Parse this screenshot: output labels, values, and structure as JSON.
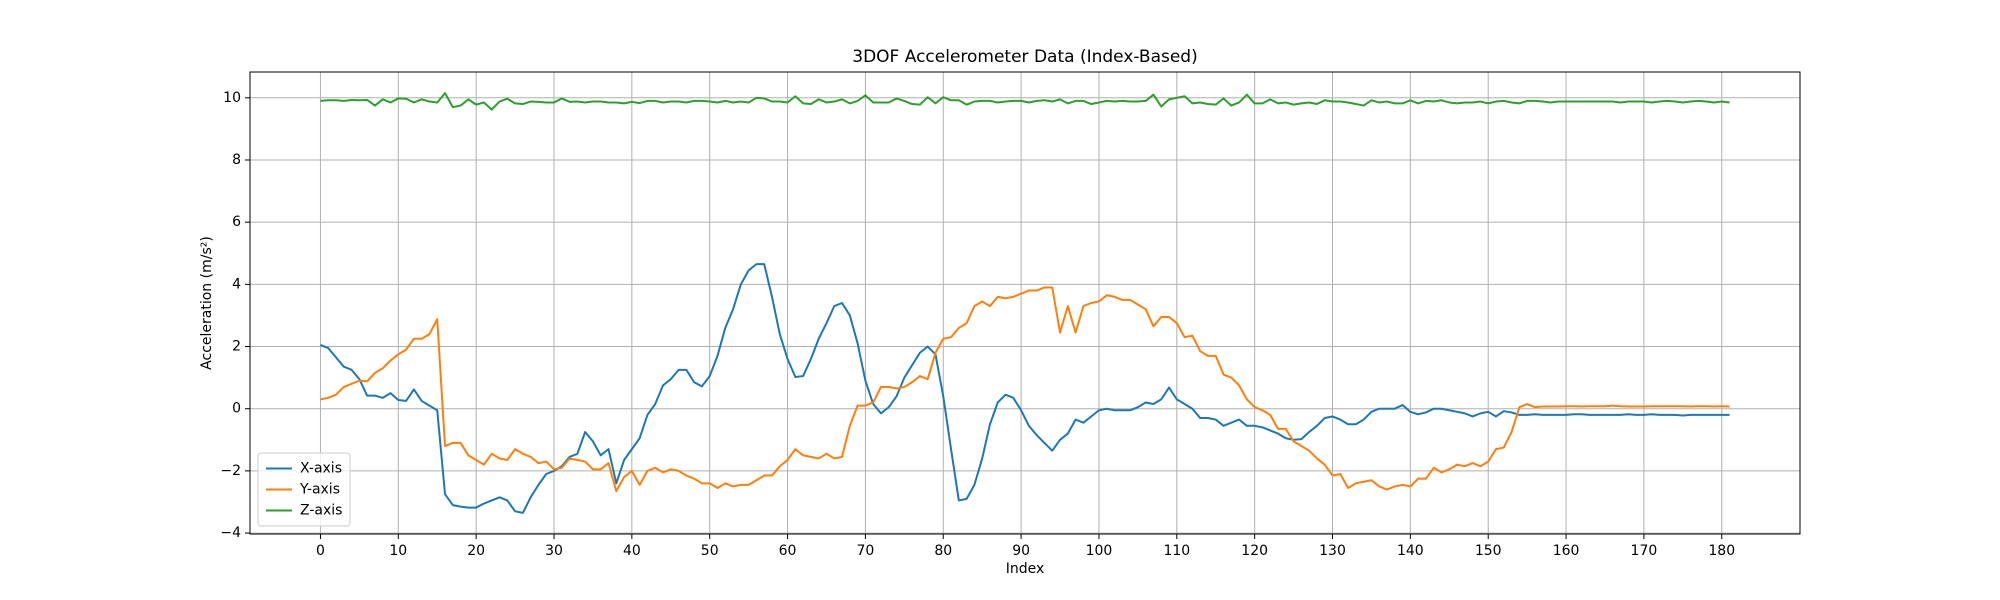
{
  "chart_data": {
    "type": "line",
    "title": "3DOF Accelerometer Data (Index-Based)",
    "x_label": "Index",
    "y_label": "Acceleration (m/s²)",
    "x": [
      0,
      1,
      2,
      3,
      4,
      5,
      6,
      7,
      8,
      9,
      10,
      11,
      12,
      13,
      14,
      15,
      16,
      17,
      18,
      19,
      20,
      21,
      22,
      23,
      24,
      25,
      26,
      27,
      28,
      29,
      30,
      31,
      32,
      33,
      34,
      35,
      36,
      37,
      38,
      39,
      40,
      41,
      42,
      43,
      44,
      45,
      46,
      47,
      48,
      49,
      50,
      51,
      52,
      53,
      54,
      55,
      56,
      57,
      58,
      59,
      60,
      61,
      62,
      63,
      64,
      65,
      66,
      67,
      68,
      69,
      70,
      71,
      72,
      73,
      74,
      75,
      76,
      77,
      78,
      79,
      80,
      81,
      82,
      83,
      84,
      85,
      86,
      87,
      88,
      89,
      90,
      91,
      92,
      93,
      94,
      95,
      96,
      97,
      98,
      99,
      100,
      101,
      102,
      103,
      104,
      105,
      106,
      107,
      108,
      109,
      110,
      111,
      112,
      113,
      114,
      115,
      116,
      117,
      118,
      119,
      120,
      121,
      122,
      123,
      124,
      125,
      126,
      127,
      128,
      129,
      130,
      131,
      132,
      133,
      134,
      135,
      136,
      137,
      138,
      139,
      140,
      141,
      142,
      143,
      144,
      145,
      146,
      147,
      148,
      149,
      150,
      151,
      152,
      153,
      154,
      155,
      156,
      157,
      158,
      159,
      160,
      161,
      162,
      163,
      164,
      165,
      166,
      167,
      168,
      169,
      170,
      171,
      172,
      173,
      174,
      175,
      176,
      177,
      178,
      179,
      180,
      181
    ],
    "series": [
      {
        "name": "X-axis",
        "color": "#1f77b4",
        "values": [
          2.05,
          1.95,
          1.65,
          1.35,
          1.25,
          0.95,
          0.42,
          0.42,
          0.35,
          0.5,
          0.28,
          0.25,
          0.62,
          0.25,
          0.1,
          -0.05,
          -2.75,
          -3.1,
          -3.15,
          -3.18,
          -3.18,
          -3.05,
          -2.95,
          -2.85,
          -2.95,
          -3.3,
          -3.35,
          -2.85,
          -2.45,
          -2.1,
          -2.0,
          -1.85,
          -1.55,
          -1.45,
          -0.75,
          -1.05,
          -1.5,
          -1.3,
          -2.4,
          -1.65,
          -1.3,
          -0.95,
          -0.2,
          0.15,
          0.75,
          0.95,
          1.25,
          1.25,
          0.85,
          0.72,
          1.05,
          1.7,
          2.6,
          3.2,
          4.0,
          4.45,
          4.65,
          4.65,
          3.6,
          2.4,
          1.6,
          1.02,
          1.05,
          1.6,
          2.25,
          2.75,
          3.3,
          3.4,
          3.0,
          2.1,
          0.9,
          0.15,
          -0.15,
          0.05,
          0.4,
          1.0,
          1.4,
          1.8,
          2.0,
          1.75,
          0.4,
          -1.3,
          -2.95,
          -2.9,
          -2.45,
          -1.6,
          -0.5,
          0.2,
          0.45,
          0.35,
          -0.05,
          -0.55,
          -0.85,
          -1.1,
          -1.35,
          -1.0,
          -0.8,
          -0.35,
          -0.45,
          -0.25,
          -0.05,
          0.0,
          -0.05,
          -0.05,
          -0.05,
          0.05,
          0.2,
          0.15,
          0.3,
          0.68,
          0.3,
          0.15,
          0.0,
          -0.3,
          -0.3,
          -0.35,
          -0.55,
          -0.45,
          -0.35,
          -0.55,
          -0.55,
          -0.6,
          -0.7,
          -0.8,
          -0.95,
          -1.0,
          -0.98,
          -0.75,
          -0.55,
          -0.3,
          -0.25,
          -0.35,
          -0.5,
          -0.5,
          -0.35,
          -0.1,
          0.0,
          0.0,
          0.0,
          0.12,
          -0.1,
          -0.18,
          -0.12,
          0.0,
          0.0,
          -0.05,
          -0.1,
          -0.15,
          -0.25,
          -0.15,
          -0.1,
          -0.25,
          -0.08,
          -0.12,
          -0.2,
          -0.2,
          -0.18,
          -0.2,
          -0.2,
          -0.2,
          -0.2,
          -0.18,
          -0.18,
          -0.2,
          -0.2,
          -0.2,
          -0.2,
          -0.2,
          -0.18,
          -0.2,
          -0.2,
          -0.18,
          -0.2,
          -0.2,
          -0.2,
          -0.22,
          -0.2,
          -0.2,
          -0.2,
          -0.2,
          -0.2,
          -0.2
        ]
      },
      {
        "name": "Y-axis",
        "color": "#ff7f0e",
        "values": [
          0.3,
          0.35,
          0.45,
          0.7,
          0.8,
          0.9,
          0.88,
          1.15,
          1.3,
          1.55,
          1.75,
          1.9,
          2.25,
          2.25,
          2.4,
          2.88,
          -1.2,
          -1.1,
          -1.1,
          -1.5,
          -1.65,
          -1.8,
          -1.45,
          -1.6,
          -1.65,
          -1.3,
          -1.45,
          -1.55,
          -1.75,
          -1.7,
          -1.95,
          -1.9,
          -1.6,
          -1.65,
          -1.7,
          -1.95,
          -1.95,
          -1.75,
          -2.65,
          -2.2,
          -2.0,
          -2.45,
          -2.0,
          -1.9,
          -2.05,
          -1.95,
          -2.0,
          -2.15,
          -2.25,
          -2.4,
          -2.4,
          -2.55,
          -2.4,
          -2.5,
          -2.45,
          -2.45,
          -2.3,
          -2.15,
          -2.15,
          -1.85,
          -1.65,
          -1.3,
          -1.5,
          -1.55,
          -1.6,
          -1.45,
          -1.6,
          -1.55,
          -0.55,
          0.1,
          0.1,
          0.2,
          0.7,
          0.7,
          0.65,
          0.7,
          0.85,
          1.05,
          0.95,
          1.8,
          2.25,
          2.3,
          2.6,
          2.75,
          3.3,
          3.45,
          3.3,
          3.6,
          3.55,
          3.6,
          3.7,
          3.8,
          3.8,
          3.9,
          3.9,
          2.45,
          3.3,
          2.45,
          3.3,
          3.4,
          3.45,
          3.65,
          3.6,
          3.5,
          3.5,
          3.35,
          3.2,
          2.65,
          2.95,
          2.95,
          2.75,
          2.3,
          2.35,
          1.85,
          1.7,
          1.7,
          1.1,
          1.0,
          0.75,
          0.3,
          0.05,
          -0.05,
          -0.2,
          -0.65,
          -0.65,
          -1.05,
          -1.2,
          -1.35,
          -1.6,
          -1.8,
          -2.15,
          -2.1,
          -2.55,
          -2.4,
          -2.35,
          -2.3,
          -2.5,
          -2.6,
          -2.5,
          -2.45,
          -2.5,
          -2.25,
          -2.25,
          -1.9,
          -2.05,
          -1.95,
          -1.8,
          -1.85,
          -1.75,
          -1.85,
          -1.7,
          -1.3,
          -1.25,
          -0.75,
          0.05,
          0.15,
          0.05,
          0.07,
          0.07,
          0.07,
          0.08,
          0.08,
          0.07,
          0.08,
          0.08,
          0.08,
          0.1,
          0.08,
          0.07,
          0.07,
          0.07,
          0.08,
          0.08,
          0.08,
          0.08,
          0.08,
          0.07,
          0.08,
          0.08,
          0.07,
          0.08,
          0.07
        ]
      },
      {
        "name": "Z-axis",
        "color": "#2ca02c",
        "values": [
          9.9,
          9.92,
          9.92,
          9.9,
          9.93,
          9.92,
          9.93,
          9.75,
          9.95,
          9.85,
          9.98,
          9.97,
          9.85,
          9.95,
          9.88,
          9.85,
          10.15,
          9.7,
          9.75,
          9.95,
          9.78,
          9.85,
          9.62,
          9.88,
          9.97,
          9.82,
          9.8,
          9.88,
          9.87,
          9.85,
          9.85,
          9.98,
          9.87,
          9.88,
          9.85,
          9.88,
          9.88,
          9.85,
          9.85,
          9.82,
          9.87,
          9.83,
          9.9,
          9.9,
          9.85,
          9.88,
          9.88,
          9.85,
          9.9,
          9.9,
          9.88,
          9.85,
          9.9,
          9.85,
          9.88,
          9.85,
          10.0,
          9.98,
          9.88,
          9.88,
          9.85,
          10.05,
          9.82,
          9.8,
          9.95,
          9.85,
          9.88,
          9.95,
          9.82,
          9.9,
          10.08,
          9.85,
          9.85,
          9.85,
          9.98,
          9.9,
          9.8,
          9.78,
          10.02,
          9.82,
          10.02,
          9.92,
          9.92,
          9.78,
          9.88,
          9.9,
          9.9,
          9.85,
          9.88,
          9.9,
          9.9,
          9.85,
          9.9,
          9.92,
          9.88,
          9.95,
          9.82,
          9.9,
          9.9,
          9.8,
          9.85,
          9.9,
          9.88,
          9.9,
          9.88,
          9.88,
          9.9,
          10.1,
          9.72,
          9.95,
          10.0,
          10.05,
          9.82,
          9.85,
          9.8,
          9.78,
          9.98,
          9.75,
          9.85,
          10.1,
          9.82,
          9.82,
          9.95,
          9.82,
          9.85,
          9.78,
          9.82,
          9.85,
          9.8,
          9.92,
          9.88,
          9.88,
          9.85,
          9.8,
          9.75,
          9.92,
          9.85,
          9.88,
          9.82,
          9.82,
          9.92,
          9.82,
          9.9,
          9.88,
          9.92,
          9.85,
          9.82,
          9.85,
          9.85,
          9.88,
          9.82,
          9.88,
          9.9,
          9.85,
          9.82,
          9.9,
          9.9,
          9.88,
          9.85,
          9.88,
          9.88,
          9.88,
          9.88,
          9.88,
          9.88,
          9.88,
          9.88,
          9.85,
          9.88,
          9.88,
          9.88,
          9.85,
          9.88,
          9.9,
          9.88,
          9.85,
          9.88,
          9.9,
          9.88,
          9.85,
          9.88,
          9.85
        ]
      }
    ],
    "xlim": [
      -9.05,
      190.05
    ],
    "ylim": [
      -4.03,
      10.83
    ],
    "xticks": [
      0,
      10,
      20,
      30,
      40,
      50,
      60,
      70,
      80,
      90,
      100,
      110,
      120,
      130,
      140,
      150,
      160,
      170,
      180
    ],
    "yticks": [
      {
        "value": -4,
        "label": "−4"
      },
      {
        "value": -2,
        "label": "−2"
      },
      0,
      2,
      4,
      6,
      8,
      10
    ],
    "grid": true,
    "legend": "lower left"
  }
}
